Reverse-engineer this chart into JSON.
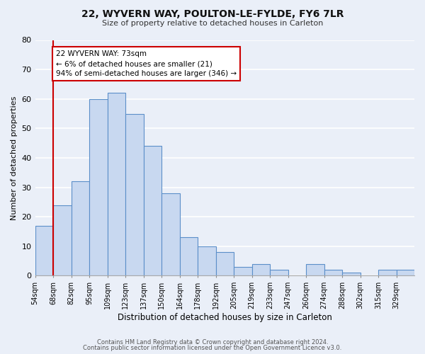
{
  "title1": "22, WYVERN WAY, POULTON-LE-FYLDE, FY6 7LR",
  "title2": "Size of property relative to detached houses in Carleton",
  "xlabel": "Distribution of detached houses by size in Carleton",
  "ylabel": "Number of detached properties",
  "bin_labels": [
    "54sqm",
    "68sqm",
    "82sqm",
    "95sqm",
    "109sqm",
    "123sqm",
    "137sqm",
    "150sqm",
    "164sqm",
    "178sqm",
    "192sqm",
    "205sqm",
    "219sqm",
    "233sqm",
    "247sqm",
    "260sqm",
    "274sqm",
    "288sqm",
    "302sqm",
    "315sqm",
    "329sqm"
  ],
  "bar_heights": [
    17,
    24,
    32,
    60,
    62,
    55,
    44,
    28,
    13,
    10,
    8,
    3,
    4,
    2,
    0,
    4,
    2,
    1,
    0,
    2,
    2
  ],
  "bar_facecolor": "#c8d8f0",
  "bar_edgecolor": "#5b8fc9",
  "vline_bin": 1,
  "vline_color": "#cc0000",
  "ylim": [
    0,
    80
  ],
  "yticks": [
    0,
    10,
    20,
    30,
    40,
    50,
    60,
    70,
    80
  ],
  "annotation_text_line1": "22 WYVERN WAY: 73sqm",
  "annotation_text_line2": "← 6% of detached houses are smaller (21)",
  "annotation_text_line3": "94% of semi-detached houses are larger (346) →",
  "footer1": "Contains HM Land Registry data © Crown copyright and database right 2024.",
  "footer2": "Contains public sector information licensed under the Open Government Licence v3.0.",
  "bg_color": "#eaeff8",
  "grid_color": "#ffffff"
}
